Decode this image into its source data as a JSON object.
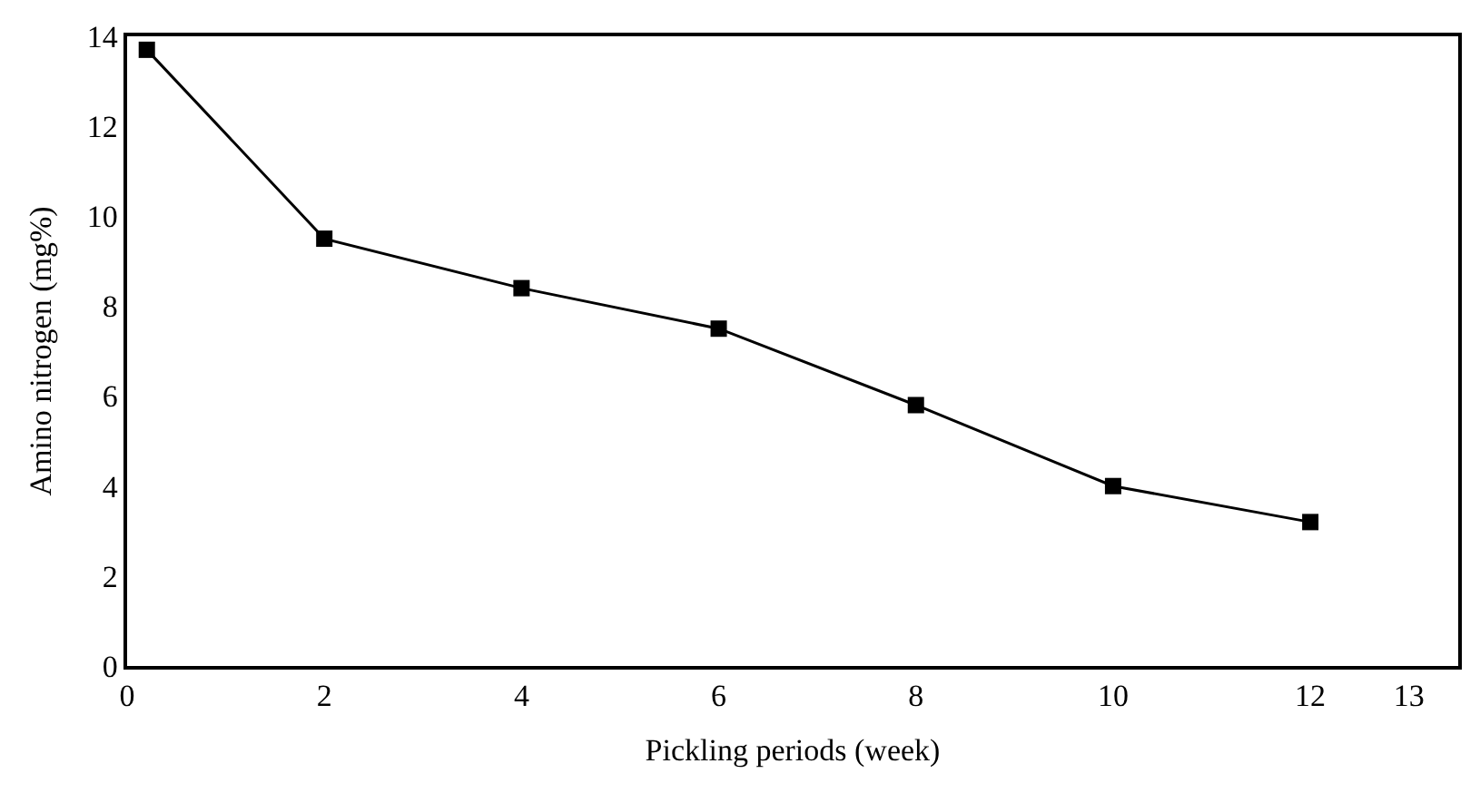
{
  "chart_data": {
    "type": "line",
    "xlabel": "Pickling periods (week)",
    "ylabel": "Amino nitrogen (mg%)",
    "x": [
      0.2,
      2,
      4,
      6,
      8,
      10,
      12
    ],
    "series": [
      {
        "color": "#000000",
        "values": [
          13.7,
          9.5,
          8.4,
          7.5,
          5.8,
          4.0,
          3.2
        ]
      }
    ],
    "xlim": [
      0,
      13.5
    ],
    "xticks": [
      0,
      2,
      4,
      6,
      8,
      10,
      12,
      13
    ],
    "ylim": [
      0,
      14
    ],
    "yticks": [
      0,
      2,
      4,
      6,
      8,
      10,
      12,
      14
    ],
    "marker": "square",
    "line_style": "solid",
    "legend": false
  }
}
